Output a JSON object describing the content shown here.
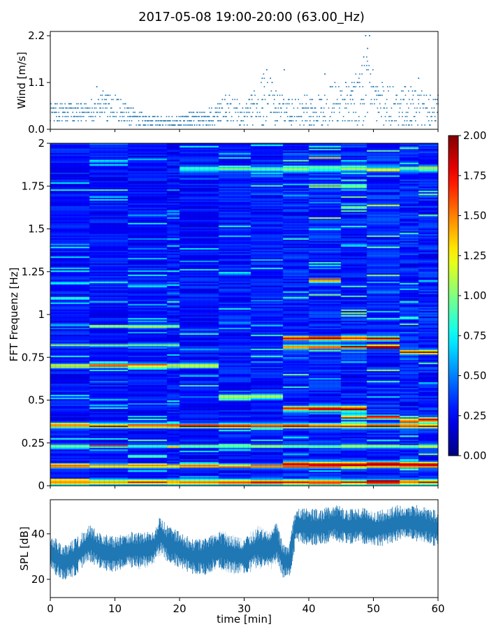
{
  "figure": {
    "title": "2017-05-08 19:00-20:00 (63.00_Hz)"
  },
  "colors": {
    "series": "#1f77b4",
    "axis": "#000000"
  },
  "chart_data": [
    {
      "type": "scatter",
      "ylabel": "Wind [m/s]",
      "xlim": [
        0,
        60
      ],
      "ylim": [
        0,
        2.3
      ],
      "yticks": [
        0.0,
        1.1,
        2.2
      ],
      "ytick_labels": [
        "0.0",
        "1.1",
        "2.2"
      ],
      "xticks": [
        0,
        10,
        20,
        30,
        40,
        50,
        60
      ],
      "levels": [
        0.1,
        0.2,
        0.3,
        0.4,
        0.5,
        0.6,
        0.7,
        0.8,
        0.9,
        1.0,
        1.1,
        1.2,
        1.3,
        1.4,
        1.5,
        1.6,
        1.7,
        1.8,
        1.9,
        2.0,
        2.1,
        2.2
      ],
      "profile_x": [
        0,
        5,
        7,
        9,
        11,
        13,
        15,
        17,
        19,
        21,
        23,
        25,
        26,
        27,
        28,
        29,
        30,
        31,
        32,
        33,
        34,
        35,
        36,
        37,
        38,
        40,
        42,
        44,
        46,
        47,
        48,
        49,
        50,
        51,
        52,
        54,
        56,
        58,
        60
      ],
      "profile_mean": [
        0.4,
        0.4,
        0.55,
        0.55,
        0.45,
        0.3,
        0.2,
        0.18,
        0.15,
        0.2,
        0.25,
        0.3,
        0.35,
        0.5,
        0.5,
        0.35,
        0.3,
        0.4,
        0.6,
        0.7,
        0.7,
        0.5,
        0.45,
        0.45,
        0.4,
        0.5,
        0.45,
        0.6,
        0.65,
        0.7,
        0.8,
        1.0,
        0.85,
        0.6,
        0.55,
        0.6,
        0.5,
        0.45,
        0.45
      ],
      "profile_spread": [
        0.25,
        0.25,
        0.3,
        0.35,
        0.3,
        0.2,
        0.12,
        0.1,
        0.1,
        0.15,
        0.2,
        0.2,
        0.25,
        0.35,
        0.35,
        0.3,
        0.25,
        0.35,
        0.6,
        0.6,
        0.6,
        0.4,
        0.35,
        0.3,
        0.3,
        0.4,
        0.4,
        0.5,
        0.5,
        0.55,
        0.7,
        0.9,
        0.6,
        0.5,
        0.5,
        0.5,
        0.45,
        0.4,
        0.35
      ],
      "peaks": [
        {
          "x": 48.8,
          "y": 2.2
        },
        {
          "x": 49.4,
          "y": 2.2
        },
        {
          "x": 48.5,
          "y": 1.7
        },
        {
          "x": 49.1,
          "y": 1.9
        },
        {
          "x": 33.5,
          "y": 1.4
        },
        {
          "x": 36.2,
          "y": 1.4
        },
        {
          "x": 42.5,
          "y": 1.3
        },
        {
          "x": 57.0,
          "y": 1.2
        },
        {
          "x": 7.2,
          "y": 1.0
        },
        {
          "x": 32.8,
          "y": 1.2
        }
      ]
    },
    {
      "type": "heatmap",
      "ylabel": "FFT Frequenz [Hz]",
      "xlim": [
        0,
        60
      ],
      "ylim": [
        0,
        2
      ],
      "yticks": [
        0,
        0.25,
        0.5,
        0.75,
        1,
        1.25,
        1.5,
        1.75,
        2
      ],
      "ytick_labels": [
        "0",
        "0.25",
        "0.5",
        "0.75",
        "1",
        "1.25",
        "1.5",
        "1.75",
        "2"
      ],
      "xticks": [
        0,
        10,
        20,
        30,
        40,
        50,
        60
      ],
      "colorbar": {
        "vmin": 0.0,
        "vmax": 2.0,
        "ticks": [
          "0.00",
          "0.25",
          "0.50",
          "0.75",
          "1.00",
          "1.25",
          "1.50",
          "1.75",
          "2.00"
        ],
        "colormap": "jet"
      },
      "time_segments": [
        0,
        6,
        12,
        18,
        20,
        26,
        31,
        36,
        40,
        45,
        49,
        54,
        57,
        60
      ],
      "bands": [
        {
          "t0": 0,
          "t1": 60,
          "f": 0.35,
          "w": 0.012,
          "a": 1.6
        },
        {
          "t0": 0,
          "t1": 60,
          "f": 0.115,
          "w": 0.01,
          "a": 1.4
        },
        {
          "t0": 0,
          "t1": 60,
          "f": 0.02,
          "w": 0.015,
          "a": 1.5
        },
        {
          "t0": 0,
          "t1": 60,
          "f": 0.23,
          "w": 0.008,
          "a": 0.9
        },
        {
          "t0": 0,
          "t1": 26,
          "f": 0.7,
          "w": 0.012,
          "a": 1.2
        },
        {
          "t0": 6,
          "t1": 20,
          "f": 0.93,
          "w": 0.008,
          "a": 1.0
        },
        {
          "t0": 0,
          "t1": 20,
          "f": 0.82,
          "w": 0.008,
          "a": 0.8
        },
        {
          "t0": 26,
          "t1": 36,
          "f": 0.52,
          "w": 0.012,
          "a": 1.0
        },
        {
          "t0": 36,
          "t1": 49,
          "f": 0.45,
          "w": 0.015,
          "a": 1.5
        },
        {
          "t0": 38,
          "t1": 54,
          "f": 0.86,
          "w": 0.012,
          "a": 1.6
        },
        {
          "t0": 38,
          "t1": 54,
          "f": 0.81,
          "w": 0.01,
          "a": 1.7
        },
        {
          "t0": 54,
          "t1": 60,
          "f": 0.78,
          "w": 0.012,
          "a": 1.6
        },
        {
          "t0": 40,
          "t1": 45,
          "f": 1.2,
          "w": 0.01,
          "a": 1.5
        },
        {
          "t0": 45,
          "t1": 54,
          "f": 0.4,
          "w": 0.012,
          "a": 1.3
        },
        {
          "t0": 54,
          "t1": 60,
          "f": 0.38,
          "w": 0.012,
          "a": 1.4
        },
        {
          "t0": 36,
          "t1": 60,
          "f": 0.13,
          "w": 0.01,
          "a": 1.5
        },
        {
          "t0": 40,
          "t1": 50,
          "f": 1.75,
          "w": 0.01,
          "a": 1.0
        },
        {
          "t0": 20,
          "t1": 60,
          "f": 1.85,
          "w": 0.015,
          "a": 0.7
        }
      ]
    },
    {
      "type": "area",
      "ylabel": "SPL [dB]",
      "xlabel": "time [min]",
      "xlim": [
        0,
        60
      ],
      "ylim": [
        12,
        55
      ],
      "yticks": [
        20,
        40
      ],
      "ytick_labels": [
        "20",
        "40"
      ],
      "xticks": [
        0,
        10,
        20,
        30,
        40,
        50,
        60
      ],
      "xtick_labels": [
        "0",
        "10",
        "20",
        "30",
        "40",
        "50",
        "60"
      ],
      "x": [
        0,
        2,
        4,
        6,
        8,
        10,
        12,
        14,
        16,
        17,
        18,
        20,
        22,
        24,
        26,
        28,
        30,
        32,
        34,
        35,
        36,
        37,
        38,
        40,
        42,
        44,
        46,
        48,
        50,
        52,
        54,
        56,
        58,
        60
      ],
      "y_low": [
        24,
        20,
        24,
        28,
        26,
        25,
        26,
        24,
        26,
        30,
        28,
        27,
        22,
        22,
        24,
        22,
        22,
        24,
        24,
        26,
        22,
        22,
        38,
        36,
        36,
        38,
        36,
        36,
        35,
        36,
        38,
        38,
        36,
        34
      ],
      "y_high": [
        38,
        34,
        36,
        42,
        38,
        38,
        40,
        40,
        40,
        46,
        42,
        40,
        38,
        38,
        42,
        40,
        38,
        44,
        42,
        46,
        36,
        36,
        50,
        50,
        50,
        52,
        50,
        52,
        50,
        50,
        52,
        52,
        52,
        48
      ],
      "y_center": [
        32,
        27,
        30,
        36,
        32,
        31,
        33,
        33,
        34,
        40,
        36,
        33,
        30,
        30,
        33,
        31,
        30,
        34,
        33,
        37,
        28,
        28,
        44,
        43,
        43,
        45,
        43,
        44,
        42,
        43,
        45,
        45,
        44,
        42
      ]
    }
  ]
}
